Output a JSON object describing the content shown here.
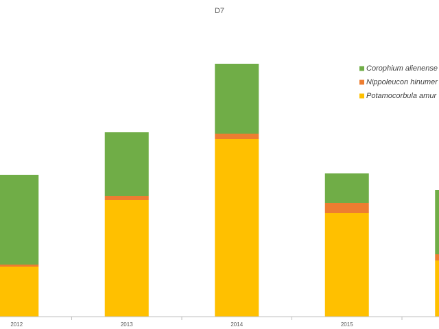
{
  "chart_data": {
    "type": "stacked_bar",
    "title": "D7",
    "categories": [
      "2012",
      "2013",
      "2014",
      "2015",
      null
    ],
    "series": [
      {
        "name": "Potamocorbula amur",
        "color": "#ffc000",
        "values": [
          73,
          170,
          259,
          151,
          82
        ]
      },
      {
        "name": "Nippoleucon hinumer",
        "color": "#ed7d31",
        "values": [
          3,
          6,
          8,
          15,
          9
        ]
      },
      {
        "name": "Corophium alienense",
        "color": "#70ad47",
        "values": [
          131,
          93,
          102,
          43,
          94
        ]
      }
    ],
    "ylim": [
      0,
      450
    ]
  }
}
